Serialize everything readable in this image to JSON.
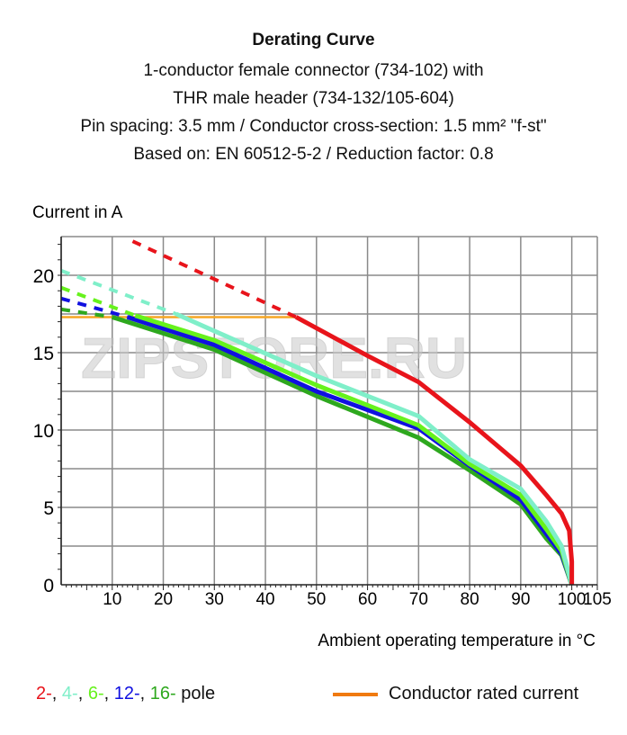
{
  "title": "Derating Curve",
  "subtitle_lines": [
    "1-conductor female connector (734-102) with",
    "THR male header (734-132/105-604)",
    "Pin spacing: 3.5 mm / Conductor cross-section: 1.5 mm² \"f-st\"",
    "Based on: EN 60512-5-2 / Reduction factor: 0.8"
  ],
  "watermark": "ZIPSTORE.RU",
  "chart_data": {
    "type": "line",
    "xlabel": "Ambient operating temperature in °C",
    "ylabel": "Current in A",
    "xlim": [
      0,
      105
    ],
    "ylim": [
      0,
      22.5
    ],
    "xticks": [
      10,
      20,
      30,
      40,
      50,
      60,
      70,
      80,
      90,
      100,
      105
    ],
    "yticks": [
      0,
      5,
      10,
      15,
      20
    ],
    "grid": true,
    "legend_position": "bottom",
    "series": [
      {
        "name": "2-",
        "color": "#e8141b",
        "dashed": [
          [
            14,
            22.2
          ],
          [
            46,
            17.3
          ]
        ],
        "solid": [
          [
            46,
            17.3
          ],
          [
            60,
            14.8
          ],
          [
            70,
            13.1
          ],
          [
            80,
            10.5
          ],
          [
            90,
            7.7
          ],
          [
            95,
            5.8
          ],
          [
            98,
            4.6
          ],
          [
            99.5,
            3.5
          ],
          [
            100,
            1.5
          ],
          [
            100,
            0
          ]
        ]
      },
      {
        "name": "4-",
        "color": "#7fefc9",
        "dashed": [
          [
            0,
            20.3
          ],
          [
            22.5,
            17.5
          ]
        ],
        "solid": [
          [
            22.5,
            17.5
          ],
          [
            30,
            16.4
          ],
          [
            50,
            13.5
          ],
          [
            70,
            10.9
          ],
          [
            80,
            8.1
          ],
          [
            90,
            6.2
          ],
          [
            95,
            4.1
          ],
          [
            98,
            2.5
          ],
          [
            100,
            0
          ]
        ]
      },
      {
        "name": "6-",
        "color": "#66f21c",
        "dashed": [
          [
            0,
            19.2
          ],
          [
            14.5,
            17.4
          ]
        ],
        "solid": [
          [
            14.5,
            17.4
          ],
          [
            30,
            15.8
          ],
          [
            50,
            12.9
          ],
          [
            70,
            10.3
          ],
          [
            80,
            7.8
          ],
          [
            90,
            5.8
          ],
          [
            95,
            3.6
          ],
          [
            98,
            2.2
          ],
          [
            100,
            0
          ]
        ]
      },
      {
        "name": "12-",
        "color": "#1010e0",
        "dashed": [
          [
            0,
            18.5
          ],
          [
            13,
            17.3
          ]
        ],
        "solid": [
          [
            13,
            17.3
          ],
          [
            30,
            15.5
          ],
          [
            50,
            12.5
          ],
          [
            70,
            10.1
          ],
          [
            80,
            7.7
          ],
          [
            90,
            5.5
          ],
          [
            95,
            3.3
          ],
          [
            98,
            2.0
          ],
          [
            100,
            0
          ]
        ]
      },
      {
        "name": "16-",
        "color": "#2ea81e",
        "dashed": [
          [
            0,
            17.8
          ],
          [
            10,
            17.3
          ]
        ],
        "solid": [
          [
            10,
            17.3
          ],
          [
            30,
            15.2
          ],
          [
            50,
            12.2
          ],
          [
            70,
            9.5
          ],
          [
            80,
            7.4
          ],
          [
            90,
            5.2
          ],
          [
            95,
            3.0
          ],
          [
            98,
            1.9
          ],
          [
            100,
            0
          ]
        ]
      },
      {
        "name": "Conductor rated current",
        "color": "#f5a623",
        "solid": [
          [
            0,
            17.3
          ],
          [
            46,
            17.3
          ]
        ]
      }
    ],
    "legend_suffix": "pole",
    "legend_rated_label": "Conductor rated current",
    "legend_rated_color": "#f07a10"
  }
}
